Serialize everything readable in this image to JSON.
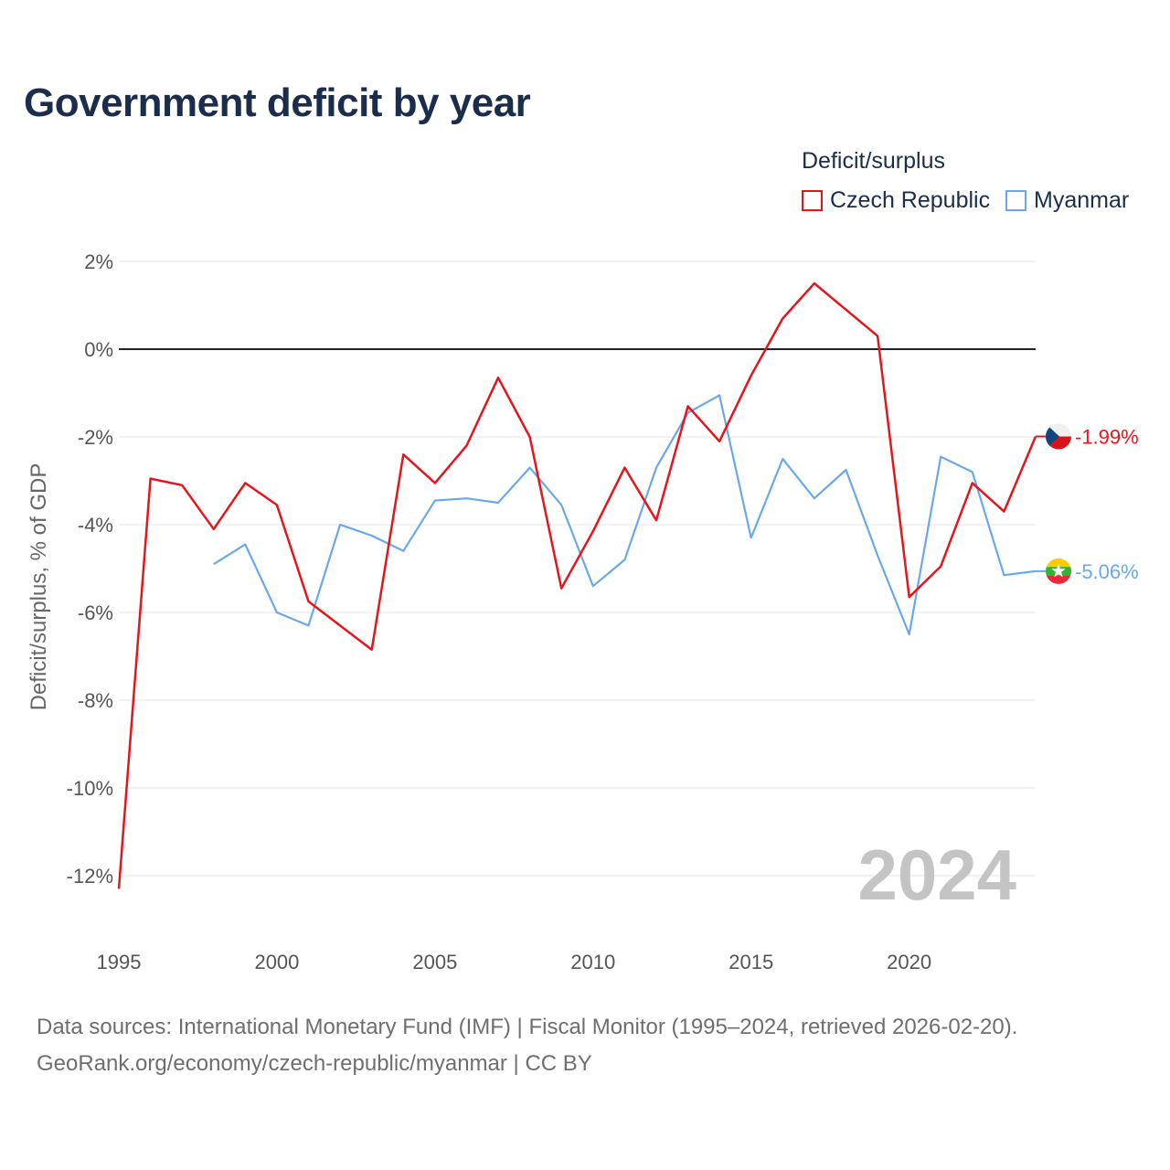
{
  "title": "Government deficit by year",
  "legend": {
    "title": "Deficit/surplus",
    "items": [
      {
        "label": "Czech Republic",
        "color": "#e8141c"
      },
      {
        "label": "Myanmar",
        "color": "#6aa9e8"
      }
    ]
  },
  "source": {
    "line1": "Data sources: International Monetary Fund (IMF) | Fiscal Monitor (1995–2024, retrieved 2026-02-20).",
    "line2": "GeoRank.org/economy/czech-republic/myanmar | CC BY"
  },
  "chart_data": {
    "type": "line",
    "title": "Government deficit by year",
    "xlabel": "",
    "ylabel": "Deficit/surplus, % of GDP",
    "xlim": [
      1995,
      2024
    ],
    "ylim": [
      -13,
      2.5
    ],
    "x_ticks": [
      1995,
      2000,
      2005,
      2010,
      2015,
      2020
    ],
    "y_ticks": [
      2,
      0,
      -2,
      -4,
      -6,
      -8,
      -10,
      -12
    ],
    "y_tick_labels": [
      "2%",
      "0%",
      "-2%",
      "-4%",
      "-6%",
      "-8%",
      "-10%",
      "-12%"
    ],
    "grid": true,
    "reference_line": 0,
    "watermark_year": "2024",
    "legend_position": "top-right",
    "series": [
      {
        "name": "Czech Republic",
        "color": "#e8141c",
        "end_label": "-1.99%",
        "x": [
          1995,
          1996,
          1997,
          1998,
          1999,
          2000,
          2001,
          2002,
          2003,
          2004,
          2005,
          2006,
          2007,
          2008,
          2009,
          2010,
          2011,
          2012,
          2013,
          2014,
          2015,
          2016,
          2017,
          2018,
          2019,
          2020,
          2021,
          2022,
          2023,
          2024
        ],
        "values": [
          -12.3,
          -2.95,
          -3.1,
          -4.1,
          -3.05,
          -3.55,
          -5.75,
          -6.3,
          -6.85,
          -2.4,
          -3.05,
          -2.2,
          -0.65,
          -2.0,
          -5.45,
          -4.15,
          -2.7,
          -3.9,
          -1.3,
          -2.1,
          -0.6,
          0.7,
          1.5,
          0.9,
          0.3,
          -5.65,
          -4.95,
          -3.05,
          -3.7,
          -1.99
        ]
      },
      {
        "name": "Myanmar",
        "color": "#6aa9e8",
        "end_label": "-5.06%",
        "x": [
          1998,
          1999,
          2000,
          2001,
          2002,
          2003,
          2004,
          2005,
          2006,
          2007,
          2008,
          2009,
          2010,
          2011,
          2012,
          2013,
          2014,
          2015,
          2016,
          2017,
          2018,
          2019,
          2020,
          2021,
          2022,
          2023,
          2024
        ],
        "values": [
          -4.9,
          -4.45,
          -6.0,
          -6.3,
          -4.0,
          -4.25,
          -4.6,
          -3.45,
          -3.4,
          -3.5,
          -2.7,
          -3.55,
          -5.4,
          -4.8,
          -2.7,
          -1.45,
          -1.05,
          -4.3,
          -2.5,
          -3.4,
          -2.75,
          -4.7,
          -6.5,
          -2.45,
          -2.8,
          -5.15,
          -5.06
        ]
      }
    ]
  }
}
